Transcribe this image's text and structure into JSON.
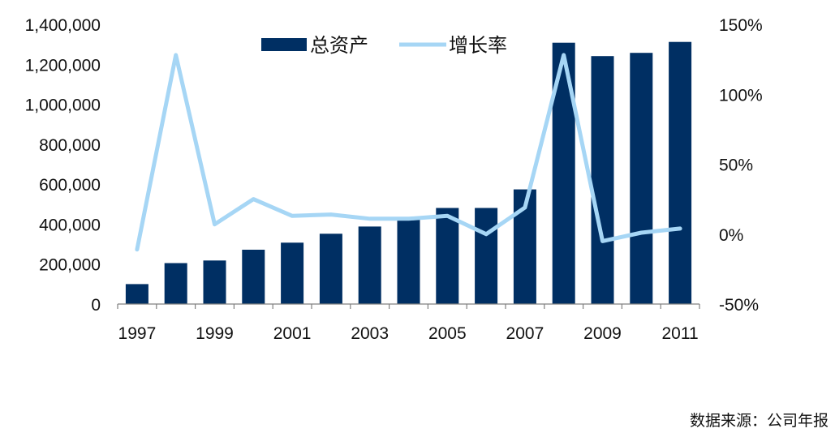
{
  "chart_data": {
    "type": "bar+line",
    "categories": [
      "1997",
      "1998",
      "1999",
      "2000",
      "2001",
      "2002",
      "2003",
      "2004",
      "2005",
      "2006",
      "2007",
      "2008",
      "2009",
      "2010",
      "2011"
    ],
    "series": [
      {
        "name": "总资产",
        "type": "bar",
        "axis": "left",
        "color": "#002F63",
        "values": [
          100000,
          205000,
          218000,
          272000,
          307000,
          352000,
          388000,
          432000,
          481000,
          481000,
          574000,
          1308000,
          1241000,
          1257000,
          1312000
        ]
      },
      {
        "name": "增长率",
        "type": "line",
        "axis": "right",
        "color": "#A6D6F5",
        "values": [
          -11,
          128,
          7,
          25,
          13,
          14,
          11,
          11,
          13,
          0,
          19,
          128,
          -5,
          1,
          4
        ]
      }
    ],
    "y_left": {
      "min": 0,
      "max": 1400000,
      "ticks": [
        0,
        200000,
        400000,
        600000,
        800000,
        1000000,
        1200000,
        1400000
      ],
      "tick_labels": [
        "0",
        "200,000",
        "400,000",
        "600,000",
        "800,000",
        "1,000,000",
        "1,200,000",
        "1,400,000"
      ]
    },
    "y_right": {
      "min": -50,
      "max": 150,
      "ticks": [
        -50,
        0,
        50,
        100,
        150
      ],
      "tick_labels": [
        "-50%",
        "0%",
        "50%",
        "100%",
        "150%"
      ]
    },
    "x_tick_labels": [
      "1997",
      "1999",
      "2001",
      "2003",
      "2005",
      "2007",
      "2009",
      "2011"
    ],
    "legend": {
      "position": "top-center",
      "items": [
        "总资产",
        "增长率"
      ]
    },
    "grid": false
  },
  "source_note": "数据来源：公司年报"
}
